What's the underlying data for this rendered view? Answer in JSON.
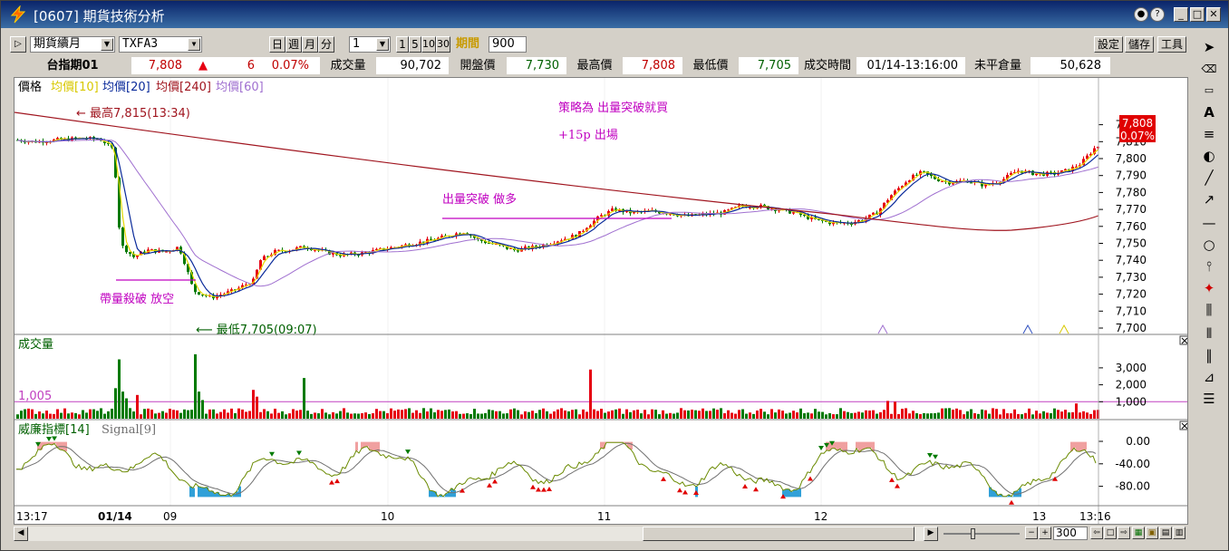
{
  "window": {
    "title": "[0607] 期貨技術分析"
  },
  "toolbar": {
    "product": "期貨續月",
    "symbol": "TXFA3",
    "period_buttons": [
      "日",
      "週",
      "月",
      "分"
    ],
    "interval": "1",
    "interval_buttons": [
      "1",
      "5",
      "10",
      "30"
    ],
    "period_label": "期間",
    "period_value": "900",
    "right_buttons": [
      "設定",
      "儲存",
      "工具"
    ]
  },
  "quote": {
    "name": "台指期01",
    "price": "7,808",
    "change": "6",
    "change_pct": "0.07%",
    "volume_label": "成交量",
    "volume": "90,702",
    "open_label": "開盤價",
    "open": "7,730",
    "high_label": "最高價",
    "high": "7,808",
    "low_label": "最低價",
    "low": "7,705",
    "time_label": "成交時間",
    "time": "01/14-13:16:00",
    "oi_label": "未平倉量",
    "oi": "50,628"
  },
  "colors": {
    "up": "#e60012",
    "down": "#007a00",
    "ma10": "#e8d800",
    "ma20": "#0a2a9a",
    "ma240": "#a0151f",
    "ma60": "#a070d0",
    "annotation": "#c000c0",
    "wr_line": "#6a8a00",
    "signal": "#707070",
    "overbought": "#f0a0a0",
    "oversold": "#30a0d8"
  },
  "chart_data": [
    {
      "type": "candlestick",
      "legend": [
        "價格",
        "均價[10]",
        "均價[20]",
        "均價[240]",
        "均價[60]"
      ],
      "ylim": [
        7700,
        7825
      ],
      "yticks": [
        7700,
        7710,
        7720,
        7730,
        7740,
        7750,
        7760,
        7770,
        7780,
        7790,
        7800,
        7810,
        7820
      ],
      "ytick_labels": [
        "7,700",
        "7,710",
        "7,720",
        "7,730",
        "7,740",
        "7,750",
        "7,760",
        "7,770",
        "7,780",
        "7,790",
        "7,800",
        "7,810",
        "7,820"
      ],
      "last_price_label": "7,808",
      "last_change_label": "0.07%",
      "annotations": {
        "high": "最高7,815(13:34)",
        "low": "最低7,705(09:07)",
        "strategy": "策略為  出量突破就買",
        "exit": "+15p 出場",
        "long_entry": "出量突破  做多",
        "short_entry": "帶量殺破  放空"
      },
      "key_points": {
        "high": 7815,
        "low": 7705,
        "last": 7808,
        "breakout_level": 7761,
        "breakdown_level": 7729
      }
    },
    {
      "type": "bar",
      "title": "成交量",
      "ylim": [
        0,
        4000
      ],
      "yticks": [
        1000,
        2000,
        3000
      ],
      "ytick_labels": [
        "1,000",
        "2,000",
        "3,000"
      ],
      "reference_label": "1,005",
      "reference": 1005
    },
    {
      "type": "line",
      "title": "威廉指標[14]",
      "signal_name": "Signal[9]",
      "ylim": [
        -100,
        0
      ],
      "yticks": [
        0,
        -40,
        -80
      ],
      "ytick_labels": [
        "0.00",
        "-40.00",
        "-80.00"
      ]
    }
  ],
  "xaxis": {
    "labels": [
      "13:17",
      "01/14",
      "09",
      "10",
      "11",
      "12",
      "13",
      "13:16"
    ]
  },
  "bottom": {
    "zoom": "300"
  }
}
